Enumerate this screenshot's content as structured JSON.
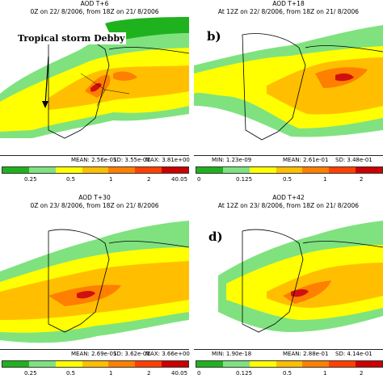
{
  "colorbar": [
    "#1fb21f",
    "#7fe27f",
    "#ffff00",
    "#ffbf00",
    "#ff7f00",
    "#ff4000",
    "#cc0000"
  ],
  "colors": {
    "ocean": "#ffffff",
    "low": "#1fb21f",
    "lowmid": "#7fe27f",
    "mid": "#ffff00",
    "midhigh": "#ffbf00",
    "high": "#ff7f00",
    "veryhigh": "#d01010"
  },
  "panels": {
    "a": {
      "title": "AOD T+6",
      "subtitle": "0Z on 22/ 8/2006, from 18Z on 21/ 8/2006",
      "label": "",
      "stats": {
        "mean": "MEAN:   2.56e-01",
        "sd": "SD:   3.55e-01",
        "max": "MAX:   3.81e+00"
      },
      "ticks": [
        "0.25",
        "0.5",
        "1",
        "2",
        "40.05"
      ],
      "annotation": "Tropical storm Debby"
    },
    "b": {
      "title": "AOD T+18",
      "subtitle": "At 12Z on 22/ 8/2006, from 18Z on 21/ 8/2006",
      "label": "b)",
      "stats": {
        "min": "MIN:   1.23e-09",
        "mean": "MEAN:   2.61e-01",
        "sd": "SD:   3.48e-01"
      },
      "ticks": [
        "0",
        "0.125",
        "0.5",
        "1",
        "2"
      ]
    },
    "c": {
      "title": "AOD T+30",
      "subtitle": "0Z on 23/ 8/2006, from 18Z on 21/ 8/2006",
      "label": "",
      "stats": {
        "mean": "MEAN:   2.69e-01",
        "sd": "SD:   3.62e-01",
        "max": "MAX:   3.66e+00"
      },
      "ticks": [
        "0.25",
        "0.5",
        "1",
        "2",
        "40.05"
      ]
    },
    "d": {
      "title": "AOD T+42",
      "subtitle": "At 12Z on 23/ 8/2006, from 18Z on 21/ 8/2006",
      "label": "d)",
      "stats": {
        "min": "MIN:   1.90e-18",
        "mean": "MEAN:   2.88e-01",
        "sd": "SD:   4.14e-01"
      },
      "ticks": [
        "0",
        "0.125",
        "0.5",
        "1",
        "2"
      ]
    }
  }
}
